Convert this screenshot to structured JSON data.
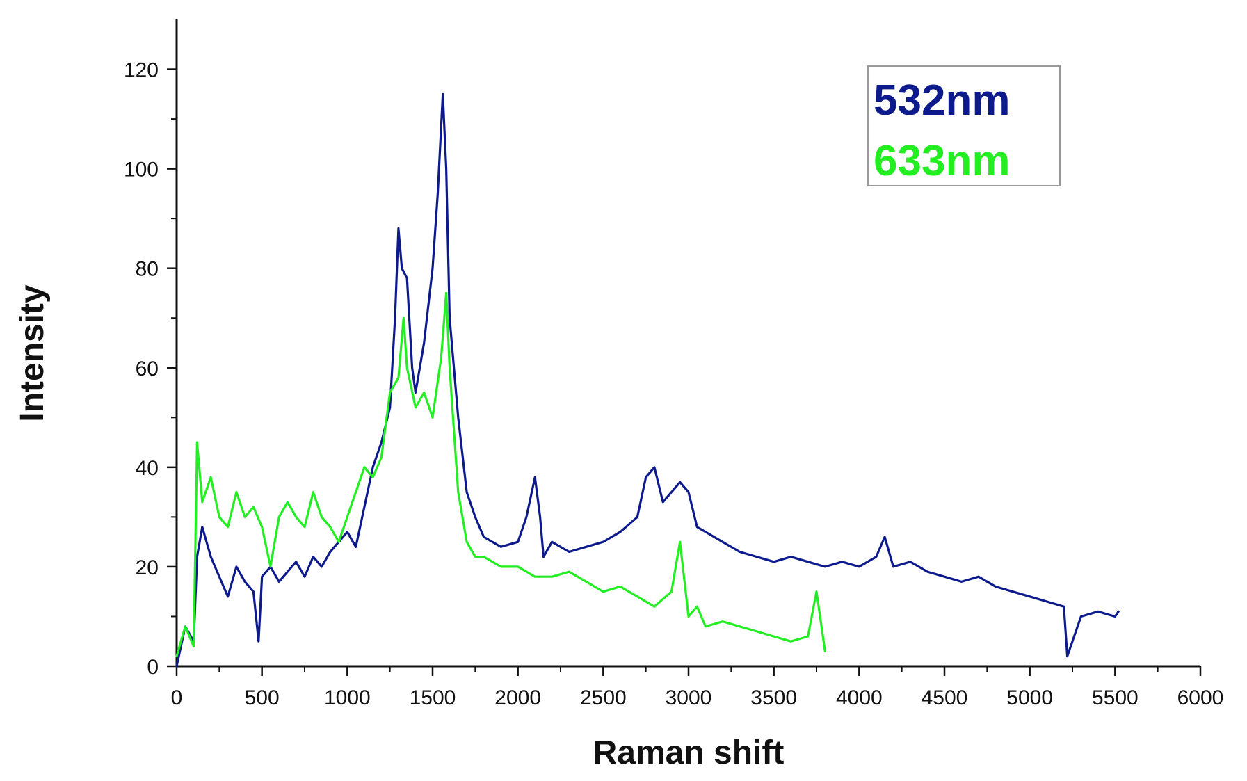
{
  "chart_data": {
    "type": "line",
    "xlabel": "Raman shift",
    "ylabel": "Intensity",
    "xlim": [
      0,
      6000
    ],
    "ylim": [
      0,
      130
    ],
    "x_ticks": [
      0,
      500,
      1000,
      1500,
      2000,
      2500,
      3000,
      3500,
      4000,
      4500,
      5000,
      5500,
      6000
    ],
    "y_ticks": [
      0,
      20,
      40,
      60,
      80,
      100,
      120
    ],
    "grid": false,
    "legend_position": "top-right",
    "series": [
      {
        "name": "532nm",
        "color": "#0d1a8c",
        "x": [
          0,
          50,
          100,
          120,
          150,
          200,
          250,
          300,
          350,
          400,
          450,
          480,
          500,
          550,
          600,
          650,
          700,
          750,
          800,
          850,
          900,
          950,
          1000,
          1050,
          1100,
          1150,
          1200,
          1250,
          1280,
          1300,
          1320,
          1350,
          1380,
          1400,
          1450,
          1500,
          1530,
          1560,
          1580,
          1600,
          1650,
          1700,
          1750,
          1800,
          1900,
          2000,
          2050,
          2100,
          2130,
          2150,
          2200,
          2300,
          2400,
          2500,
          2600,
          2700,
          2750,
          2800,
          2850,
          2900,
          2950,
          3000,
          3050,
          3100,
          3200,
          3300,
          3400,
          3500,
          3600,
          3700,
          3800,
          3900,
          4000,
          4100,
          4150,
          4200,
          4300,
          4400,
          4500,
          4600,
          4700,
          4800,
          4900,
          5000,
          5100,
          5200,
          5220,
          5300,
          5400,
          5500,
          5520
        ],
        "y": [
          0,
          8,
          5,
          22,
          28,
          22,
          18,
          14,
          20,
          17,
          15,
          5,
          18,
          20,
          17,
          19,
          21,
          18,
          22,
          20,
          23,
          25,
          27,
          24,
          32,
          40,
          45,
          52,
          70,
          88,
          80,
          78,
          60,
          55,
          65,
          80,
          95,
          115,
          100,
          70,
          50,
          35,
          30,
          26,
          24,
          25,
          30,
          38,
          30,
          22,
          25,
          23,
          24,
          25,
          27,
          30,
          38,
          40,
          33,
          35,
          37,
          35,
          28,
          27,
          25,
          23,
          22,
          21,
          22,
          21,
          20,
          21,
          20,
          22,
          26,
          20,
          21,
          19,
          18,
          17,
          18,
          16,
          15,
          14,
          13,
          12,
          2,
          10,
          11,
          10,
          11
        ]
      },
      {
        "name": "633nm",
        "color": "#22ee22",
        "x": [
          0,
          50,
          100,
          120,
          150,
          200,
          250,
          300,
          350,
          400,
          450,
          500,
          550,
          600,
          650,
          700,
          750,
          800,
          850,
          900,
          950,
          1000,
          1050,
          1100,
          1150,
          1200,
          1250,
          1300,
          1330,
          1350,
          1400,
          1450,
          1500,
          1550,
          1580,
          1600,
          1650,
          1700,
          1750,
          1800,
          1900,
          2000,
          2100,
          2200,
          2300,
          2400,
          2500,
          2600,
          2700,
          2800,
          2900,
          2950,
          3000,
          3050,
          3100,
          3200,
          3300,
          3400,
          3500,
          3600,
          3700,
          3750,
          3800
        ],
        "y": [
          2,
          8,
          4,
          45,
          33,
          38,
          30,
          28,
          35,
          30,
          32,
          28,
          20,
          30,
          33,
          30,
          28,
          35,
          30,
          28,
          25,
          30,
          35,
          40,
          38,
          42,
          55,
          58,
          70,
          60,
          52,
          55,
          50,
          62,
          75,
          60,
          35,
          25,
          22,
          22,
          20,
          20,
          18,
          18,
          19,
          17,
          15,
          16,
          14,
          12,
          15,
          25,
          10,
          12,
          8,
          9,
          8,
          7,
          6,
          5,
          6,
          15,
          3
        ]
      }
    ]
  }
}
